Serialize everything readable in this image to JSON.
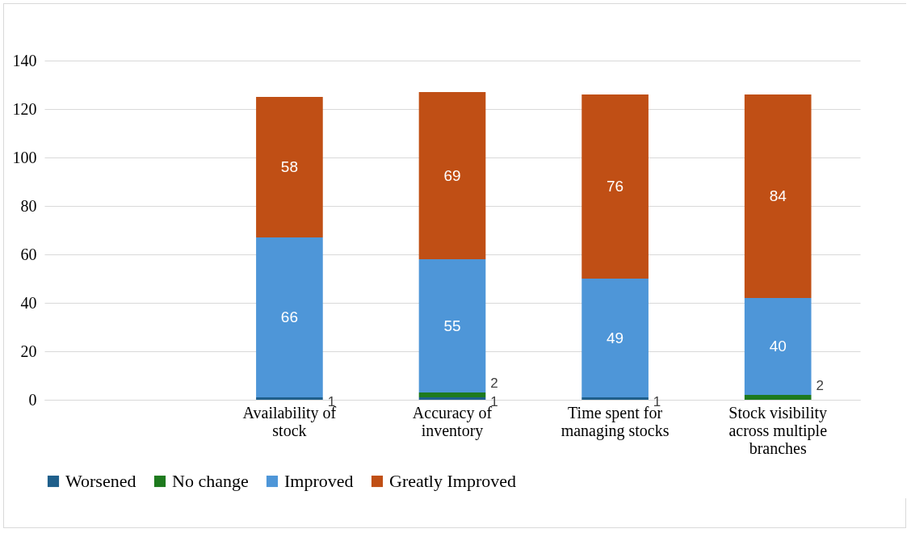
{
  "chart_data": {
    "type": "bar",
    "stacked": true,
    "categories": [
      null,
      "Availability of stock",
      "Accuracy of inventory",
      "Time spent for managing stocks",
      "Stock visibility across multiple branches"
    ],
    "series": [
      {
        "name": "Worsened",
        "color": "#1f5f8b",
        "values": [
          null,
          1,
          1,
          1,
          null
        ]
      },
      {
        "name": "No change",
        "color": "#1e7a1e",
        "values": [
          null,
          null,
          2,
          null,
          2
        ]
      },
      {
        "name": "Improved",
        "color": "#4e96d8",
        "values": [
          null,
          66,
          55,
          49,
          40
        ]
      },
      {
        "name": "Greatly Improved",
        "color": "#c04f15",
        "values": [
          null,
          58,
          69,
          76,
          84
        ]
      }
    ],
    "ylim": [
      0,
      140
    ],
    "yticks": [
      0,
      20,
      40,
      60,
      80,
      100,
      120,
      140
    ],
    "grid": "y",
    "legend": "bottom",
    "data_labels": true
  }
}
